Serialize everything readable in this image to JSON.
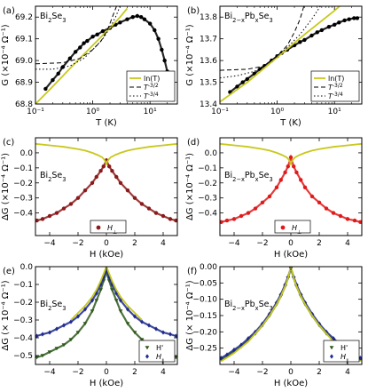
{
  "chart_data": [
    {
      "type": "scatter",
      "panel": "(a)",
      "annotation": "Bi2Se3",
      "xlabel": "T (K)",
      "ylabel": "G (×10⁻⁴ Ω⁻¹)",
      "xscale": "log",
      "xlim": [
        0.1,
        30
      ],
      "ylim": [
        68.8,
        69.25
      ],
      "xticks": [
        {
          "v": 0.1,
          "t": "10⁻¹"
        },
        {
          "v": 1,
          "t": "10⁰"
        },
        {
          "v": 10,
          "t": "10¹"
        }
      ],
      "yticks": [
        68.8,
        68.9,
        69.0,
        69.1,
        69.2
      ],
      "ytick_labels": [
        "68.8",
        "68.9",
        "69.0",
        "69.1",
        "69.2"
      ],
      "legend_position": "lower-right",
      "series": [
        {
          "kind": "points",
          "color": "#000000",
          "x": [
            0.15,
            0.2,
            0.25,
            0.3,
            0.4,
            0.5,
            0.6,
            0.7,
            0.8,
            1.0,
            1.2,
            1.5,
            2.0,
            2.5,
            3,
            4,
            5,
            6,
            7,
            8,
            10,
            12,
            14,
            16,
            18,
            20,
            22,
            25
          ],
          "y": [
            68.87,
            68.91,
            68.94,
            68.97,
            69.01,
            69.04,
            69.06,
            69.08,
            69.09,
            69.11,
            69.12,
            69.135,
            69.15,
            69.165,
            69.175,
            69.19,
            69.2,
            69.205,
            69.2,
            69.19,
            69.17,
            69.14,
            69.1,
            69.05,
            69.0,
            68.95,
            68.9,
            68.82
          ]
        },
        {
          "name": "ln(T)",
          "kind": "line",
          "color": "#c8c81e",
          "x": [
            0.1,
            0.2,
            0.5,
            1,
            2,
            3,
            4
          ],
          "y": [
            68.8,
            68.88,
            68.99,
            69.07,
            69.15,
            69.2,
            69.24
          ]
        },
        {
          "name": "T^{-3/2}",
          "kind": "line",
          "dash": "5,3",
          "color": "#000000",
          "x": [
            0.1,
            0.3,
            0.6,
            1.0,
            1.4,
            1.8,
            2.2,
            2.6
          ],
          "y": [
            68.985,
            68.99,
            69.01,
            69.05,
            69.09,
            69.14,
            69.2,
            69.25
          ]
        },
        {
          "name": "T^{-3/4}",
          "kind": "line",
          "dash": "1.5,2.5",
          "color": "#000000",
          "x": [
            0.1,
            0.2,
            0.4,
            0.7,
            1.0,
            1.5,
            2.0,
            2.5,
            3.0
          ],
          "y": [
            68.96,
            68.96,
            68.975,
            69.01,
            69.05,
            69.1,
            69.15,
            69.2,
            69.25
          ]
        }
      ]
    },
    {
      "type": "scatter",
      "panel": "(b)",
      "annotation": "Bi2−xPbxSe3",
      "xlabel": "T (K)",
      "ylabel": "G (×10⁻⁴ Ω⁻¹)",
      "xscale": "log",
      "xlim": [
        0.1,
        30
      ],
      "ylim": [
        13.4,
        13.85
      ],
      "xticks": [
        {
          "v": 0.1,
          "t": "10⁻¹"
        },
        {
          "v": 1,
          "t": "10⁰"
        },
        {
          "v": 10,
          "t": "10¹"
        }
      ],
      "yticks": [
        13.4,
        13.5,
        13.6,
        13.7,
        13.8
      ],
      "ytick_labels": [
        "13.4",
        "13.5",
        "13.6",
        "13.7",
        "13.8"
      ],
      "legend_position": "lower-right",
      "series": [
        {
          "kind": "points",
          "color": "#000000",
          "x": [
            0.15,
            0.2,
            0.25,
            0.3,
            0.4,
            0.5,
            0.6,
            0.8,
            1.0,
            1.2,
            1.5,
            2.0,
            2.5,
            3,
            4,
            5,
            6,
            8,
            10,
            12,
            15,
            18,
            22,
            25
          ],
          "y": [
            13.455,
            13.48,
            13.5,
            13.515,
            13.54,
            13.56,
            13.575,
            13.6,
            13.62,
            13.635,
            13.65,
            13.67,
            13.685,
            13.695,
            13.715,
            13.73,
            13.74,
            13.755,
            13.765,
            13.775,
            13.785,
            13.79,
            13.795,
            13.795
          ]
        },
        {
          "name": "ln(T)",
          "kind": "line",
          "color": "#c8c81e",
          "x": [
            0.1,
            0.3,
            1,
            3,
            10,
            25
          ],
          "y": [
            13.41,
            13.5,
            13.615,
            13.72,
            13.83,
            13.92
          ]
        },
        {
          "name": "T^{-3/2}",
          "kind": "line",
          "dash": "5,3",
          "color": "#000000",
          "x": [
            0.1,
            0.3,
            0.6,
            1.0,
            1.5,
            2.0,
            2.5,
            3.0
          ],
          "y": [
            13.555,
            13.56,
            13.575,
            13.62,
            13.67,
            13.73,
            13.79,
            13.86
          ]
        },
        {
          "name": "T^{-3/4}",
          "kind": "line",
          "dash": "1.5,2.5",
          "color": "#000000",
          "x": [
            0.1,
            0.2,
            0.4,
            0.7,
            1.0,
            1.5,
            2.5,
            4.0,
            6.0
          ],
          "y": [
            13.52,
            13.53,
            13.55,
            13.59,
            13.62,
            13.66,
            13.72,
            13.79,
            13.86
          ]
        }
      ]
    },
    {
      "type": "scatter",
      "panel": "(c)",
      "annotation": "Bi2Se3",
      "xlabel": "H (kOe)",
      "ylabel": "ΔG (×10⁻⁴ Ω⁻¹)",
      "xlim": [
        -5,
        5
      ],
      "ylim": [
        -0.55,
        0.1
      ],
      "xticks": [
        {
          "v": -4,
          "t": "−4"
        },
        {
          "v": -2,
          "t": "−2"
        },
        {
          "v": 0,
          "t": "0"
        },
        {
          "v": 2,
          "t": "2"
        },
        {
          "v": 4,
          "t": "4"
        }
      ],
      "yticks": [
        -0.4,
        -0.3,
        -0.2,
        -0.1,
        0.0
      ],
      "ytick_labels": [
        "−0.4",
        "−0.3",
        "−0.2",
        "−0.1",
        "0.0"
      ],
      "legend_position": "lower-center",
      "series": [
        {
          "name": "H_⊥",
          "kind": "points",
          "color": "#8b1a1a",
          "x": [
            -4.9,
            -4.5,
            -4.0,
            -3.5,
            -3.0,
            -2.5,
            -2.0,
            -1.5,
            -1.0,
            -0.7,
            -0.4,
            -0.2,
            0,
            0.2,
            0.4,
            0.7,
            1.0,
            1.5,
            2.0,
            2.5,
            3.0,
            3.5,
            4.0,
            4.5,
            4.9
          ],
          "y": [
            -0.45,
            -0.44,
            -0.42,
            -0.4,
            -0.37,
            -0.34,
            -0.3,
            -0.25,
            -0.2,
            -0.16,
            -0.12,
            -0.09,
            -0.05,
            -0.09,
            -0.12,
            -0.16,
            -0.2,
            -0.25,
            -0.3,
            -0.34,
            -0.37,
            -0.4,
            -0.42,
            -0.44,
            -0.45
          ]
        },
        {
          "kind": "line",
          "color": "#c8c81e",
          "x": [
            -5,
            -4,
            -3,
            -2,
            -1.5,
            -1,
            -0.6,
            -0.3,
            -0.15,
            -0.05,
            0,
            0.05,
            0.15,
            0.3,
            0.6,
            1,
            1.5,
            2,
            3,
            4,
            5
          ],
          "y": [
            0.06,
            0.05,
            0.04,
            0.025,
            0.015,
            0.0,
            -0.015,
            -0.03,
            -0.045,
            -0.06,
            -0.08,
            -0.06,
            -0.045,
            -0.03,
            -0.015,
            0.0,
            0.015,
            0.025,
            0.04,
            0.05,
            0.06
          ]
        }
      ]
    },
    {
      "type": "scatter",
      "panel": "(d)",
      "annotation": "Bi2−xPbxSe3",
      "xlabel": "H (kOe)",
      "ylabel": "ΔG (×10⁻⁴ Ω⁻¹)",
      "xlim": [
        -5,
        5
      ],
      "ylim": [
        -0.55,
        0.1
      ],
      "xticks": [
        {
          "v": -4,
          "t": "−4"
        },
        {
          "v": -2,
          "t": "−2"
        },
        {
          "v": 0,
          "t": "0"
        },
        {
          "v": 2,
          "t": "2"
        },
        {
          "v": 4,
          "t": "4"
        }
      ],
      "yticks": [
        -0.4,
        -0.3,
        -0.2,
        -0.1,
        0.0
      ],
      "ytick_labels": [
        "−0.4",
        "−0.3",
        "−0.2",
        "−0.1",
        "0.0"
      ],
      "legend_position": "lower-center",
      "series": [
        {
          "name": "H_⊥",
          "kind": "points",
          "color": "#e01a1a",
          "x": [
            -4.9,
            -4.5,
            -4.0,
            -3.5,
            -3.0,
            -2.5,
            -2.0,
            -1.5,
            -1.0,
            -0.7,
            -0.4,
            -0.2,
            0,
            0.2,
            0.4,
            0.7,
            1.0,
            1.5,
            2.0,
            2.5,
            3.0,
            3.5,
            4.0,
            4.5,
            4.9
          ],
          "y": [
            -0.46,
            -0.45,
            -0.44,
            -0.42,
            -0.4,
            -0.37,
            -0.33,
            -0.29,
            -0.23,
            -0.18,
            -0.13,
            -0.09,
            -0.03,
            -0.09,
            -0.13,
            -0.18,
            -0.23,
            -0.29,
            -0.33,
            -0.37,
            -0.4,
            -0.42,
            -0.44,
            -0.45,
            -0.46
          ]
        },
        {
          "kind": "line",
          "color": "#c8c81e",
          "x": [
            -5,
            -4,
            -3,
            -2,
            -1.5,
            -1,
            -0.6,
            -0.3,
            -0.15,
            -0.05,
            0,
            0.05,
            0.15,
            0.3,
            0.6,
            1,
            1.5,
            2,
            3,
            4,
            5
          ],
          "y": [
            0.06,
            0.05,
            0.04,
            0.025,
            0.015,
            0.0,
            -0.015,
            -0.03,
            -0.045,
            -0.06,
            -0.08,
            -0.06,
            -0.045,
            -0.03,
            -0.015,
            0.0,
            0.015,
            0.025,
            0.04,
            0.05,
            0.06
          ]
        }
      ]
    },
    {
      "type": "scatter",
      "panel": "(e)",
      "annotation": "Bi2Se3",
      "xlabel": "H (kOe)",
      "ylabel": "ΔG (× 10⁻⁴ Ω⁻¹)",
      "xlim": [
        -5,
        5
      ],
      "ylim": [
        -0.55,
        0.0
      ],
      "xticks": [
        {
          "v": -4,
          "t": "−4"
        },
        {
          "v": -2,
          "t": "−2"
        },
        {
          "v": 0,
          "t": "0"
        },
        {
          "v": 2,
          "t": "2"
        },
        {
          "v": 4,
          "t": "4"
        }
      ],
      "yticks": [
        -0.5,
        -0.4,
        -0.3,
        -0.2,
        -0.1,
        0.0
      ],
      "ytick_labels": [
        "−0.5",
        "−0.4",
        "−0.3",
        "−0.2",
        "−0.1",
        "0.0"
      ],
      "legend_position": "lower-right",
      "series": [
        {
          "name": "H'",
          "kind": "points",
          "marker": "triangle",
          "color": "#2f5a1c",
          "x": [
            -4.9,
            -4.5,
            -4.0,
            -3.5,
            -3.0,
            -2.5,
            -2.0,
            -1.5,
            -1.0,
            -0.7,
            -0.4,
            -0.2,
            0,
            0.2,
            0.4,
            0.7,
            1.0,
            1.5,
            2.0,
            2.5,
            3.0,
            3.5,
            4.0,
            4.5,
            4.9
          ],
          "y": [
            -0.51,
            -0.5,
            -0.48,
            -0.46,
            -0.44,
            -0.41,
            -0.37,
            -0.32,
            -0.25,
            -0.19,
            -0.13,
            -0.08,
            -0.03,
            -0.08,
            -0.13,
            -0.19,
            -0.25,
            -0.32,
            -0.37,
            -0.41,
            -0.44,
            -0.46,
            -0.48,
            -0.5,
            -0.51
          ]
        },
        {
          "name": "H_∥",
          "kind": "points",
          "marker": "diamond",
          "color": "#1f2a8c",
          "x": [
            -4.9,
            -4.5,
            -4.0,
            -3.5,
            -3.0,
            -2.5,
            -2.0,
            -1.5,
            -1.0,
            -0.7,
            -0.4,
            -0.2,
            0,
            0.2,
            0.4,
            0.7,
            1.0,
            1.5,
            2.0,
            2.5,
            3.0,
            3.5,
            4.0,
            4.5,
            4.9
          ],
          "y": [
            -0.39,
            -0.38,
            -0.37,
            -0.35,
            -0.33,
            -0.31,
            -0.28,
            -0.24,
            -0.19,
            -0.15,
            -0.1,
            -0.06,
            -0.02,
            -0.06,
            -0.1,
            -0.15,
            -0.19,
            -0.24,
            -0.28,
            -0.31,
            -0.33,
            -0.35,
            -0.37,
            -0.38,
            -0.39
          ]
        },
        {
          "kind": "line",
          "color": "#c8c81e",
          "x": [
            -2.5,
            -2.0,
            -1.5,
            -1.0,
            -0.7,
            -0.4,
            -0.2,
            0,
            0.2,
            0.4,
            0.7,
            1.0,
            1.5,
            2.0,
            2.5
          ],
          "y": [
            -0.3,
            -0.26,
            -0.22,
            -0.17,
            -0.13,
            -0.08,
            -0.04,
            0.0,
            -0.04,
            -0.08,
            -0.13,
            -0.17,
            -0.22,
            -0.26,
            -0.3
          ]
        }
      ]
    },
    {
      "type": "scatter",
      "panel": "(f)",
      "annotation": "Bi2−xPbxSe3",
      "xlabel": "H (kOe)",
      "ylabel": "ΔG (× 10⁻⁴ Ω⁻¹)",
      "xlim": [
        -5,
        5
      ],
      "ylim": [
        -0.3,
        0.0
      ],
      "xticks": [
        {
          "v": -4,
          "t": "−4"
        },
        {
          "v": -2,
          "t": "−2"
        },
        {
          "v": 0,
          "t": "0"
        },
        {
          "v": 2,
          "t": "2"
        },
        {
          "v": 4,
          "t": "4"
        }
      ],
      "yticks": [
        -0.25,
        -0.2,
        -0.15,
        -0.1,
        -0.05,
        0.0
      ],
      "ytick_labels": [
        "−0.25",
        "−0.20",
        "−0.15",
        "−0.10",
        "−0.05",
        "0.00"
      ],
      "legend_position": "lower-right",
      "series": [
        {
          "name": "H'",
          "kind": "points",
          "marker": "triangle",
          "color": "#2f5a1c",
          "x": [
            -4.9,
            -4.5,
            -4.0,
            -3.5,
            -3.0,
            -2.5,
            -2.0,
            -1.5,
            -1.0,
            -0.7,
            -0.4,
            -0.2,
            0,
            0.2,
            0.4,
            0.7,
            1.0,
            1.5,
            2.0,
            2.5,
            3.0,
            3.5,
            4.0,
            4.5,
            4.9
          ],
          "y": [
            -0.285,
            -0.275,
            -0.26,
            -0.245,
            -0.225,
            -0.205,
            -0.18,
            -0.15,
            -0.115,
            -0.09,
            -0.06,
            -0.035,
            -0.005,
            -0.035,
            -0.06,
            -0.09,
            -0.115,
            -0.15,
            -0.18,
            -0.205,
            -0.225,
            -0.245,
            -0.26,
            -0.275,
            -0.285
          ]
        },
        {
          "name": "H_∥",
          "kind": "points",
          "marker": "diamond",
          "color": "#1f2a8c",
          "x": [
            -4.9,
            -4.5,
            -4.0,
            -3.5,
            -3.0,
            -2.5,
            -2.0,
            -1.5,
            -1.0,
            -0.7,
            -0.4,
            -0.2,
            0,
            0.2,
            0.4,
            0.7,
            1.0,
            1.5,
            2.0,
            2.5,
            3.0,
            3.5,
            4.0,
            4.5,
            4.9
          ],
          "y": [
            -0.28,
            -0.27,
            -0.255,
            -0.24,
            -0.22,
            -0.2,
            -0.175,
            -0.145,
            -0.11,
            -0.085,
            -0.055,
            -0.032,
            -0.004,
            -0.032,
            -0.055,
            -0.085,
            -0.11,
            -0.145,
            -0.175,
            -0.2,
            -0.22,
            -0.24,
            -0.255,
            -0.27,
            -0.28
          ]
        },
        {
          "kind": "line",
          "color": "#c8c81e",
          "x": [
            -4.9,
            -4.0,
            -3.0,
            -2.0,
            -1.5,
            -1.0,
            -0.7,
            -0.4,
            -0.2,
            0,
            0.2,
            0.4,
            0.7,
            1.0,
            1.5,
            2.0,
            3.0,
            4.0,
            4.9
          ],
          "y": [
            -0.29,
            -0.265,
            -0.23,
            -0.18,
            -0.15,
            -0.115,
            -0.09,
            -0.06,
            -0.035,
            0.0,
            -0.035,
            -0.06,
            -0.09,
            -0.115,
            -0.15,
            -0.18,
            -0.23,
            -0.265,
            -0.29
          ]
        }
      ]
    }
  ]
}
